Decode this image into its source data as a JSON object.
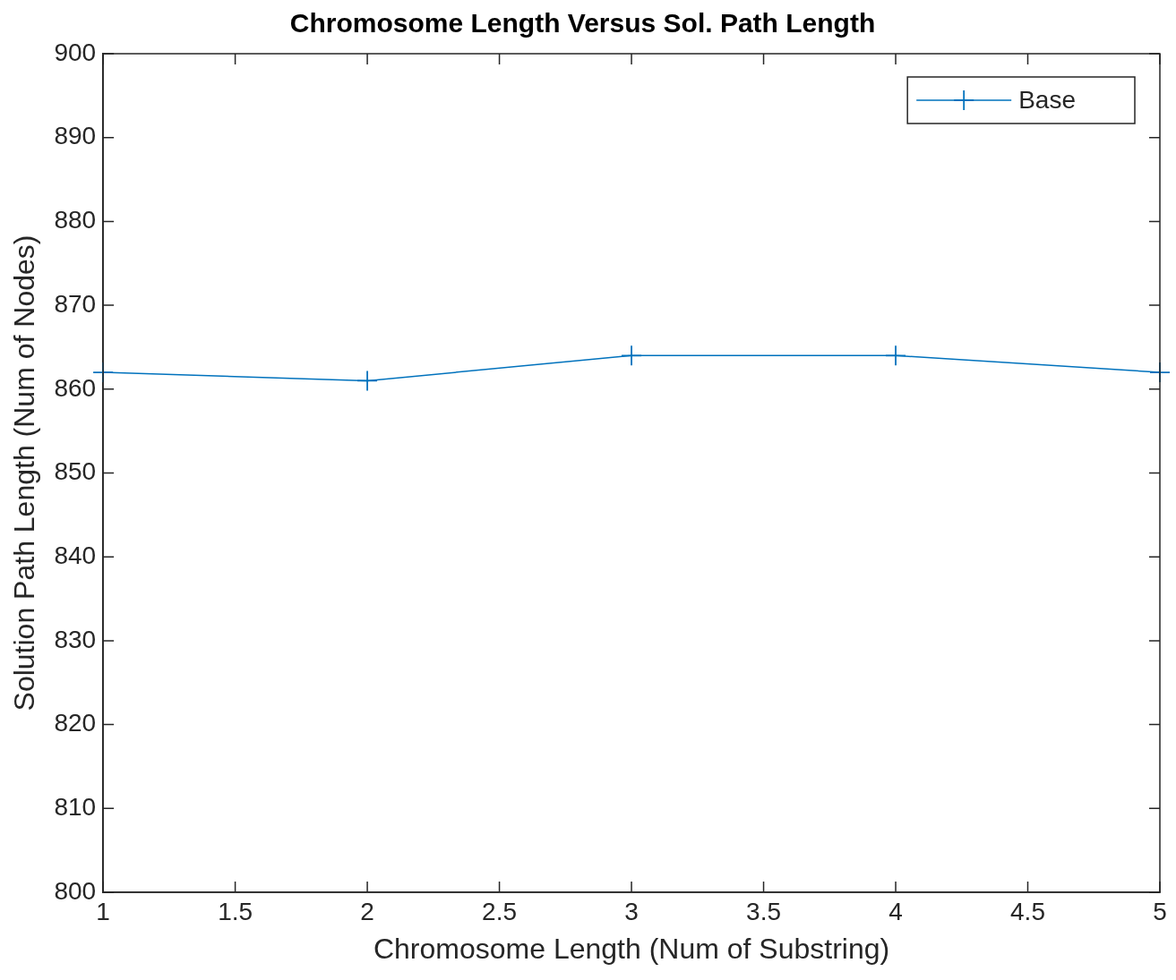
{
  "chart_data": {
    "type": "line",
    "title": "Chromosome Length Versus Sol. Path Length",
    "xlabel": "Chromosome Length (Num of Substring)",
    "ylabel": "Solution Path Length (Num of Nodes)",
    "x": [
      1,
      2,
      3,
      4,
      5
    ],
    "series": [
      {
        "name": "Base",
        "color": "#0072bd",
        "values": [
          862,
          861,
          864,
          864,
          862
        ]
      }
    ],
    "xlim": [
      1,
      5
    ],
    "xticks": [
      1,
      1.5,
      2,
      2.5,
      3,
      3.5,
      4,
      4.5,
      5
    ],
    "ylim": [
      800,
      900
    ],
    "yticks": [
      800,
      810,
      820,
      830,
      840,
      850,
      860,
      870,
      880,
      890,
      900
    ],
    "grid": false,
    "legend": "top right",
    "marker": "cross",
    "line_style": "solid"
  }
}
